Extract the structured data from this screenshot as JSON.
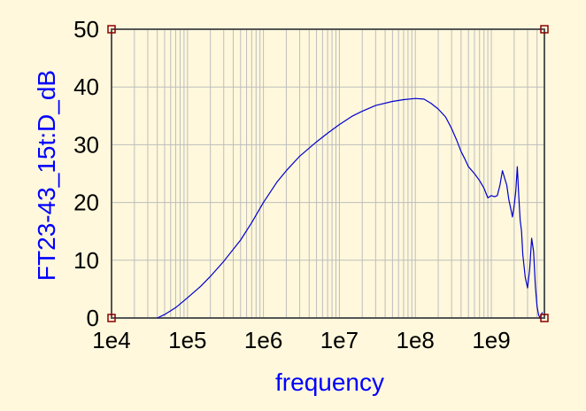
{
  "chart_data": {
    "type": "line",
    "title": "",
    "xlabel": "frequency",
    "ylabel": "FT23-43_15t:D_dB",
    "xscale": "log",
    "xlim": [
      10000,
      5000000000
    ],
    "ylim": [
      0,
      50
    ],
    "x_ticks": [
      10000,
      100000,
      1000000,
      10000000,
      100000000,
      1000000000
    ],
    "x_tick_labels": [
      "1e4",
      "1e5",
      "1e6",
      "1e7",
      "1e8",
      "1e9"
    ],
    "y_ticks": [
      0,
      10,
      20,
      30,
      40,
      50
    ],
    "y_tick_labels": [
      "0",
      "10",
      "20",
      "30",
      "40",
      "50"
    ],
    "grid": true,
    "legend": "none",
    "colors": {
      "background": "#FFF8DC",
      "plot_background": "#FFF8DC",
      "line": "#0000CC",
      "axis_label": "#0000FF",
      "grid": "#BDBDBD",
      "frame": "#555555",
      "corner_marker": "#8B0000"
    },
    "series": [
      {
        "x": [
          40000,
          50000,
          70000,
          100000,
          150000,
          200000,
          300000,
          500000,
          700000,
          1000000,
          1500000,
          2000000,
          3000000,
          5000000,
          7000000,
          10000000,
          15000000,
          20000000,
          30000000,
          50000000,
          70000000,
          100000000,
          130000000,
          160000000,
          200000000,
          250000000,
          300000000,
          350000000,
          400000000,
          450000000,
          500000000,
          600000000,
          700000000,
          800000000,
          900000000,
          1000000000,
          1100000000,
          1200000000,
          1300000000,
          1400000000,
          1500000000,
          1600000000,
          1700000000,
          1800000000,
          1900000000,
          2000000000,
          2100000000,
          2200000000,
          2300000000,
          2400000000,
          2500000000,
          2600000000,
          2800000000,
          3000000000,
          3200000000,
          3400000000,
          3600000000,
          3800000000,
          4000000000,
          4200000000,
          4400000000,
          4700000000
        ],
        "y": [
          0,
          0.6,
          1.8,
          3.5,
          5.5,
          7.2,
          9.8,
          13.5,
          16.5,
          20,
          23.5,
          25.5,
          28,
          30.5,
          32,
          33.5,
          35,
          35.8,
          36.8,
          37.5,
          37.8,
          38,
          37.9,
          37.2,
          36.2,
          34.8,
          32.8,
          30.8,
          28.8,
          27.5,
          26.2,
          25,
          23.8,
          22.5,
          20.8,
          21.2,
          21,
          21.2,
          23,
          25.5,
          24.2,
          23,
          20.5,
          19,
          17.5,
          19.5,
          22,
          26.2,
          21,
          17,
          15,
          11,
          7,
          5.2,
          8.5,
          13.8,
          11.5,
          5.5,
          2,
          0.5,
          0,
          1
        ]
      }
    ]
  }
}
